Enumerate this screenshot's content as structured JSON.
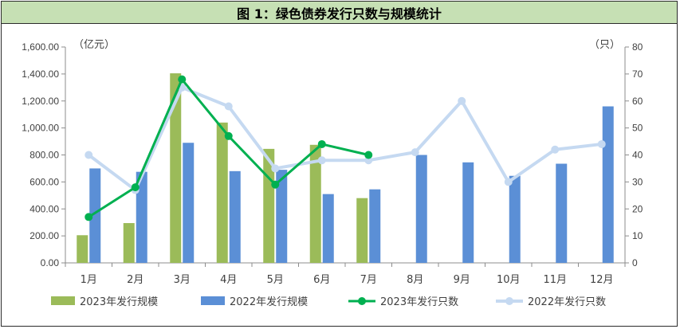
{
  "title": "图 1：绿色债券发行只数与规模统计",
  "chart_data": {
    "type": "bar",
    "title": "图 1：绿色债券发行只数与规模统计",
    "left_axis_unit": "（亿元）",
    "right_axis_unit": "（只）",
    "categories": [
      "1月",
      "2月",
      "3月",
      "4月",
      "5月",
      "6月",
      "7月",
      "8月",
      "9月",
      "10月",
      "11月",
      "12月"
    ],
    "left_axis": {
      "ylim": [
        0,
        1600
      ],
      "ticks": [
        "0.00",
        "200.00",
        "400.00",
        "600.00",
        "800.00",
        "1,000.00",
        "1,200.00",
        "1,400.00",
        "1,600.00"
      ]
    },
    "right_axis": {
      "ylim": [
        0,
        80
      ],
      "ticks": [
        "0",
        "10",
        "20",
        "30",
        "40",
        "50",
        "60",
        "70",
        "80"
      ]
    },
    "series": [
      {
        "name": "2023年发行规模",
        "kind": "bar",
        "axis": "left",
        "color": "#9bbb59",
        "values": [
          205,
          295,
          1405,
          1040,
          845,
          875,
          480,
          null,
          null,
          null,
          null,
          null
        ]
      },
      {
        "name": "2022年发行规模",
        "kind": "bar",
        "axis": "left",
        "color": "#5b8fd6",
        "values": [
          700,
          675,
          890,
          680,
          690,
          510,
          545,
          800,
          745,
          645,
          735,
          1160
        ]
      },
      {
        "name": "2023年发行只数",
        "kind": "line",
        "axis": "right",
        "color": "#00b050",
        "values": [
          17,
          28,
          68,
          47,
          29,
          44,
          40,
          null,
          null,
          null,
          null,
          null
        ]
      },
      {
        "name": "2022年发行只数",
        "kind": "line",
        "axis": "right",
        "color": "#c5d9f1",
        "values": [
          40,
          27,
          65,
          58,
          35,
          38,
          38,
          41,
          60,
          30,
          42,
          44
        ]
      }
    ],
    "grid": false,
    "legend_position": "bottom"
  }
}
